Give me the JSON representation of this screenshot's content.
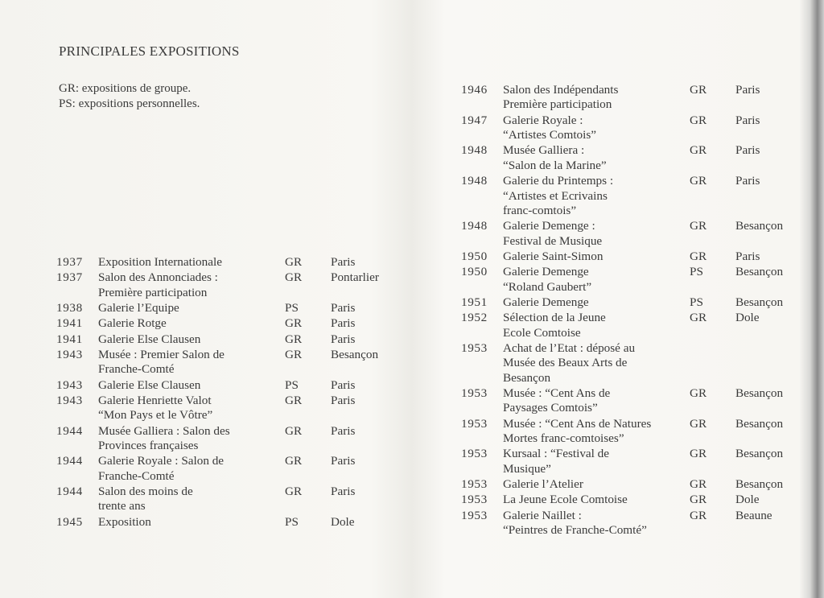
{
  "heading": "PRINCIPALES EXPOSITIONS",
  "legend": [
    "GR: expositions de groupe.",
    "PS: expositions personnelles."
  ],
  "left_entries": [
    {
      "year": "1937",
      "title": "Exposition Internationale",
      "type": "GR",
      "city": "Paris"
    },
    {
      "year": "1937",
      "title": "Salon des Annonciades :\nPremière participation",
      "type": "GR",
      "city": "Pontarlier"
    },
    {
      "year": "1938",
      "title": "Galerie l’Equipe",
      "type": "PS",
      "city": "Paris"
    },
    {
      "year": "1941",
      "title": "Galerie Rotge",
      "type": "GR",
      "city": "Paris"
    },
    {
      "year": "1941",
      "title": "Galerie Else Clausen",
      "type": "GR",
      "city": "Paris"
    },
    {
      "year": "1943",
      "title": "Musée : Premier Salon de\nFranche-Comté",
      "type": "GR",
      "city": "Besançon"
    },
    {
      "year": "1943",
      "title": "Galerie Else Clausen",
      "type": "PS",
      "city": "Paris"
    },
    {
      "year": "1943",
      "title": "Galerie Henriette Valot\n“Mon Pays et le Vôtre”",
      "type": "GR",
      "city": "Paris"
    },
    {
      "year": "1944",
      "title": "Musée Galliera : Salon des\nProvinces françaises",
      "type": "GR",
      "city": "Paris"
    },
    {
      "year": "1944",
      "title": "Galerie Royale : Salon de\nFranche-Comté",
      "type": "GR",
      "city": "Paris"
    },
    {
      "year": "1944",
      "title": "Salon des moins de\ntrente ans",
      "type": "GR",
      "city": "Paris"
    },
    {
      "year": "1945",
      "title": "Exposition",
      "type": "PS",
      "city": "Dole"
    }
  ],
  "right_entries": [
    {
      "year": "1946",
      "title": "Salon des Indépendants\nPremière participation",
      "type": "GR",
      "city": "Paris"
    },
    {
      "year": "1947",
      "title": "Galerie Royale :\n“Artistes Comtois”",
      "type": "GR",
      "city": "Paris"
    },
    {
      "year": "1948",
      "title": "Musée Galliera :\n“Salon de la Marine”",
      "type": "GR",
      "city": "Paris"
    },
    {
      "year": "1948",
      "title": "Galerie du Printemps :\n“Artistes et Ecrivains\nfranc-comtois”",
      "type": "GR",
      "city": "Paris"
    },
    {
      "year": "1948",
      "title": "Galerie Demenge :\nFestival de Musique",
      "type": "GR",
      "city": "Besançon"
    },
    {
      "year": "1950",
      "title": "Galerie Saint-Simon",
      "type": "GR",
      "city": "Paris"
    },
    {
      "year": "1950",
      "title": "Galerie Demenge\n“Roland Gaubert”",
      "type": "PS",
      "city": "Besançon"
    },
    {
      "year": "1951",
      "title": "Galerie Demenge",
      "type": "PS",
      "city": "Besançon"
    },
    {
      "year": "1952",
      "title": "Sélection de la Jeune\nEcole Comtoise",
      "type": "GR",
      "city": "Dole"
    },
    {
      "year": "1953",
      "title": "Achat de l’Etat : déposé au\nMusée des Beaux Arts de\nBesançon",
      "type": "",
      "city": ""
    },
    {
      "year": "1953",
      "title": "Musée : “Cent Ans de\nPaysages Comtois”",
      "type": "GR",
      "city": "Besançon"
    },
    {
      "year": "1953",
      "title": "Musée : “Cent Ans de Natures\nMortes franc-comtoises”",
      "type": "GR",
      "city": "Besançon"
    },
    {
      "year": "1953",
      "title": "Kursaal : “Festival de\nMusique”",
      "type": "GR",
      "city": "Besançon"
    },
    {
      "year": "1953",
      "title": "Galerie l’Atelier",
      "type": "GR",
      "city": "Besançon"
    },
    {
      "year": "1953",
      "title": "La Jeune Ecole Comtoise",
      "type": "GR",
      "city": "Dole"
    },
    {
      "year": "1953",
      "title": "Galerie Naillet :\n“Peintres de Franche-Comté”",
      "type": "GR",
      "city": "Beaune"
    }
  ]
}
